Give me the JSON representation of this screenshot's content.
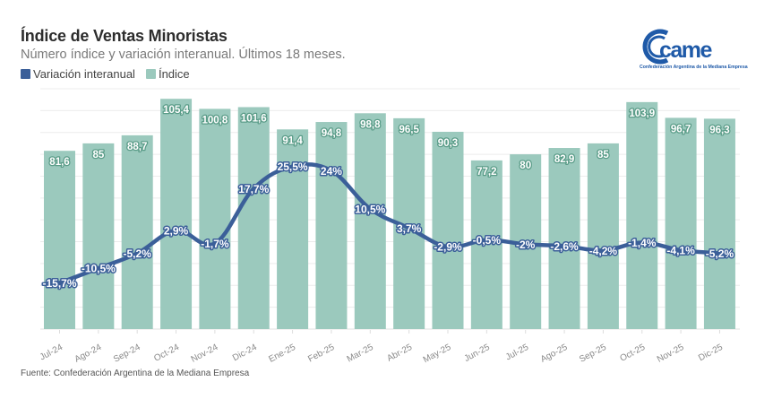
{
  "header": {
    "title": "Índice de Ventas Minoristas",
    "subtitle": "Número índice y variación interanual. Últimos 18 meses."
  },
  "logo": {
    "text": "came",
    "tagline": "Confederación Argentina de la Mediana Empresa",
    "color": "#1f5aa8"
  },
  "source": "Fuente: Confederación Argentina de la Mediana Empresa",
  "chart_data": {
    "type": "bar",
    "title": "Índice de Ventas Minoristas",
    "subtitle": "Número índice y variación interanual. Últimos 18 meses.",
    "xlabel": "",
    "ylabel": "",
    "grid": true,
    "legend_position": "top-left",
    "categories": [
      "Jul-24",
      "Ago-24",
      "Sep-24",
      "Oct-24",
      "Nov-24",
      "Dic-24",
      "Ene-25",
      "Feb-25",
      "Mar-25",
      "Abr-25",
      "May-25",
      "Jun-25",
      "Jul-25",
      "Ago-25",
      "Sep-25",
      "Oct-25",
      "Nov-25",
      "Dic-25"
    ],
    "series": [
      {
        "name": "Variación interanual",
        "type": "line",
        "color": "#3b5f99",
        "values": [
          -15.7,
          -10.5,
          -5.2,
          2.9,
          -1.7,
          17.7,
          25.5,
          24,
          10.5,
          3.7,
          -2.9,
          -0.5,
          -2,
          -2.6,
          -4.2,
          -1.4,
          -4.1,
          -5.2
        ],
        "labels": [
          "-15,7%",
          "-10,5%",
          "-5,2%",
          "2,9%",
          "-1,7%",
          "17,7%",
          "25,5%",
          "24%",
          "10,5%",
          "3,7%",
          "-2,9%",
          "-0,5%",
          "-2%",
          "-2,6%",
          "-4,2%",
          "-1,4%",
          "-4,1%",
          "-5,2%"
        ],
        "ylim": [
          -32,
          53
        ]
      },
      {
        "name": "Índice",
        "type": "bar",
        "color": "#9bc9bd",
        "values": [
          81.6,
          85,
          88.7,
          105.4,
          100.8,
          101.6,
          91.4,
          94.8,
          98.8,
          96.5,
          90.3,
          77.2,
          80,
          82.9,
          85,
          103.9,
          96.7,
          96.3
        ],
        "labels": [
          "81,6",
          "85",
          "88,7",
          "105,4",
          "100,8",
          "101,6",
          "91,4",
          "94,8",
          "98,8",
          "96,5",
          "90,3",
          "77,2",
          "80",
          "82,9",
          "85",
          "103,9",
          "96,7",
          "96,3"
        ],
        "ylim": [
          0,
          110
        ]
      }
    ]
  }
}
